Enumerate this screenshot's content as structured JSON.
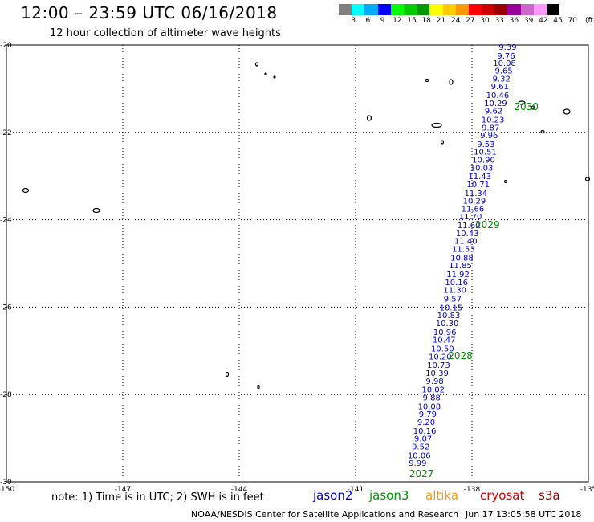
{
  "header": {
    "title": "12:00 – 23:59 UTC 06/16/2018",
    "subtitle": "12 hour collection of altimeter wave heights"
  },
  "colorbar": {
    "colors": [
      "#808080",
      "#00ffff",
      "#00aaff",
      "#0000ff",
      "#00ff00",
      "#00cc00",
      "#009900",
      "#ffff00",
      "#ffcc00",
      "#ff9900",
      "#ff0000",
      "#cc0000",
      "#990000",
      "#990099",
      "#cc66cc",
      "#ff99ff",
      "#000000"
    ],
    "labels": [
      "3",
      "6",
      "9",
      "12",
      "15",
      "18",
      "21",
      "24",
      "27",
      "30",
      "33",
      "36",
      "39",
      "42",
      "45",
      "70"
    ],
    "unit": "(ft)"
  },
  "chart_data": {
    "type": "scatter",
    "title": "12:00 – 23:59 UTC 06/16/2018",
    "subtitle": "12 hour collection of altimeter wave heights",
    "xlim": [
      -150,
      -135
    ],
    "ylim": [
      -30,
      -20
    ],
    "x_ticks": [
      "-150",
      "-147",
      "-144",
      "-141",
      "-138",
      "-135"
    ],
    "y_ticks": [
      "-20",
      "-22",
      "-24",
      "-26",
      "-28",
      "-30"
    ],
    "grid": true,
    "series": [
      {
        "name": "jason2",
        "color": "#0000cc",
        "points": [
          {
            "lon": -137.08,
            "lat": -20.04,
            "swh": "9.39"
          },
          {
            "lon": -137.12,
            "lat": -20.24,
            "swh": "9.76"
          },
          {
            "lon": -137.16,
            "lat": -20.4,
            "swh": "10.08"
          },
          {
            "lon": -137.18,
            "lat": -20.58,
            "swh": "9.65"
          },
          {
            "lon": -137.24,
            "lat": -20.76,
            "swh": "9.32"
          },
          {
            "lon": -137.28,
            "lat": -20.94,
            "swh": "9.61"
          },
          {
            "lon": -137.34,
            "lat": -21.14,
            "swh": "10.46"
          },
          {
            "lon": -137.39,
            "lat": -21.32,
            "swh": "10.29"
          },
          {
            "lon": -137.44,
            "lat": -21.5,
            "swh": "9.62"
          },
          {
            "lon": -137.46,
            "lat": -21.7,
            "swh": "10.23"
          },
          {
            "lon": -137.52,
            "lat": -21.88,
            "swh": "9.87"
          },
          {
            "lon": -137.56,
            "lat": -22.06,
            "swh": "9.96"
          },
          {
            "lon": -137.64,
            "lat": -22.26,
            "swh": "9.53"
          },
          {
            "lon": -137.66,
            "lat": -22.44,
            "swh": "10.51"
          },
          {
            "lon": -137.7,
            "lat": -22.62,
            "swh": "10.90"
          },
          {
            "lon": -137.75,
            "lat": -22.8,
            "swh": "10.03"
          },
          {
            "lon": -137.8,
            "lat": -23.0,
            "swh": "11.43"
          },
          {
            "lon": -137.84,
            "lat": -23.18,
            "swh": "10.71"
          },
          {
            "lon": -137.9,
            "lat": -23.38,
            "swh": "11.34"
          },
          {
            "lon": -137.94,
            "lat": -23.56,
            "swh": "10.29"
          },
          {
            "lon": -137.98,
            "lat": -23.74,
            "swh": "11.66"
          },
          {
            "lon": -138.04,
            "lat": -23.92,
            "swh": "11.70"
          },
          {
            "lon": -138.08,
            "lat": -24.12,
            "swh": "11.60"
          },
          {
            "lon": -138.12,
            "lat": -24.3,
            "swh": "10.43"
          },
          {
            "lon": -138.16,
            "lat": -24.48,
            "swh": "11.40"
          },
          {
            "lon": -138.22,
            "lat": -24.66,
            "swh": "11.53"
          },
          {
            "lon": -138.26,
            "lat": -24.86,
            "swh": "10.88"
          },
          {
            "lon": -138.3,
            "lat": -25.04,
            "swh": "11.85"
          },
          {
            "lon": -138.36,
            "lat": -25.24,
            "swh": "11.92"
          },
          {
            "lon": -138.4,
            "lat": -25.42,
            "swh": "10.16"
          },
          {
            "lon": -138.44,
            "lat": -25.6,
            "swh": "11.30"
          },
          {
            "lon": -138.5,
            "lat": -25.8,
            "swh": "9.57"
          },
          {
            "lon": -138.54,
            "lat": -26.0,
            "swh": "10.15"
          },
          {
            "lon": -138.6,
            "lat": -26.18,
            "swh": "10.83"
          },
          {
            "lon": -138.64,
            "lat": -26.36,
            "swh": "10.30"
          },
          {
            "lon": -138.7,
            "lat": -26.56,
            "swh": "10.96"
          },
          {
            "lon": -138.72,
            "lat": -26.74,
            "swh": "10.47"
          },
          {
            "lon": -138.76,
            "lat": -26.94,
            "swh": "10.50"
          },
          {
            "lon": -138.82,
            "lat": -27.12,
            "swh": "10.20"
          },
          {
            "lon": -138.86,
            "lat": -27.32,
            "swh": "10.73"
          },
          {
            "lon": -138.9,
            "lat": -27.5,
            "swh": "10.39"
          },
          {
            "lon": -138.96,
            "lat": -27.68,
            "swh": "9.98"
          },
          {
            "lon": -139.0,
            "lat": -27.88,
            "swh": "10.02"
          },
          {
            "lon": -139.04,
            "lat": -28.06,
            "swh": "9.88"
          },
          {
            "lon": -139.1,
            "lat": -28.26,
            "swh": "10.08"
          },
          {
            "lon": -139.14,
            "lat": -28.44,
            "swh": "9.79"
          },
          {
            "lon": -139.18,
            "lat": -28.62,
            "swh": "9.20"
          },
          {
            "lon": -139.22,
            "lat": -28.82,
            "swh": "10.16"
          },
          {
            "lon": -139.26,
            "lat": -29.0,
            "swh": "9.07"
          },
          {
            "lon": -139.32,
            "lat": -29.18,
            "swh": "9.52"
          },
          {
            "lon": -139.36,
            "lat": -29.38,
            "swh": "10.06"
          },
          {
            "lon": -139.4,
            "lat": -29.56,
            "swh": "9.99"
          }
        ]
      }
    ],
    "time_labels": [
      {
        "text": "2030",
        "lon": -136.6,
        "lat": -21.4
      },
      {
        "text": "2029",
        "lon": -137.6,
        "lat": -24.1
      },
      {
        "text": "2028",
        "lon": -138.3,
        "lat": -27.1
      },
      {
        "text": "2027",
        "lon": -139.3,
        "lat": -29.8
      }
    ]
  },
  "footer": {
    "note": "note: 1) Time is in UTC; 2) SWH is in feet",
    "satellites": [
      {
        "name": "jason2",
        "color": "#0000cc"
      },
      {
        "name": "jason3",
        "color": "#009900"
      },
      {
        "name": "altika",
        "color": "#ff9900"
      },
      {
        "name": "cryosat",
        "color": "#cc0000"
      },
      {
        "name": "s3a",
        "color": "#990000"
      }
    ],
    "credit": "NOAA/NESDIS Center for Satellite Applications and Research",
    "timestamp": "Jun 17 13:05:58 UTC 2018"
  }
}
